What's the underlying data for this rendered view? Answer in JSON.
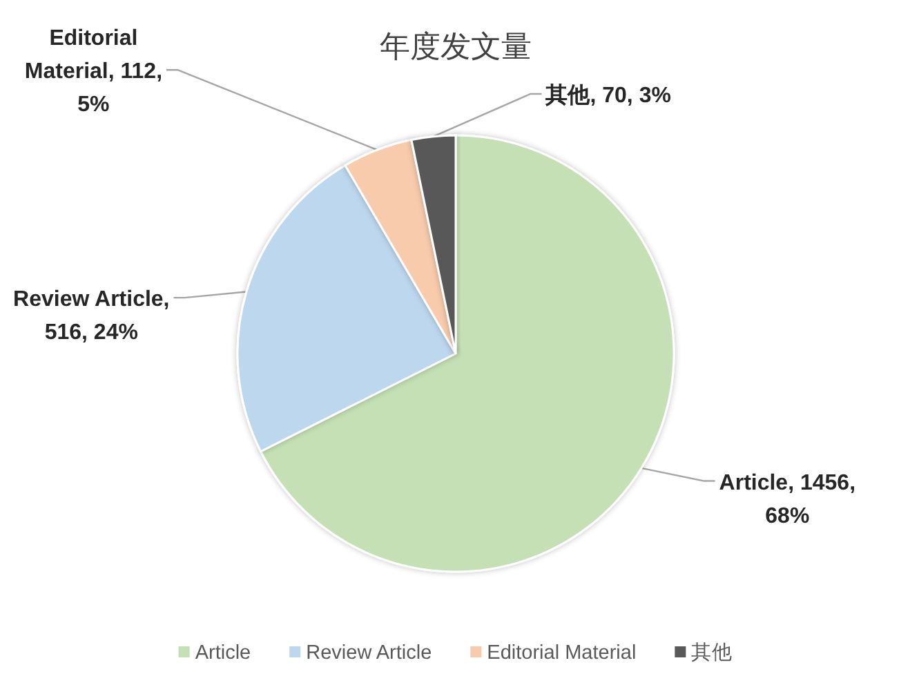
{
  "chart_data": {
    "type": "pie",
    "title": "年度发文量",
    "categories": [
      "Article",
      "Review Article",
      "Editorial Material",
      "其他"
    ],
    "values": [
      1456,
      516,
      112,
      70
    ],
    "colors": [
      "#c5e0b4",
      "#bdd7ee",
      "#f8cbad",
      "#595959"
    ],
    "value_labels": [
      "Article, 1456, 68%",
      "Review Article, 516, 24%",
      "Editorial Material, 112, 5%",
      "其他, 70, 3%"
    ],
    "legend": "bottom"
  }
}
